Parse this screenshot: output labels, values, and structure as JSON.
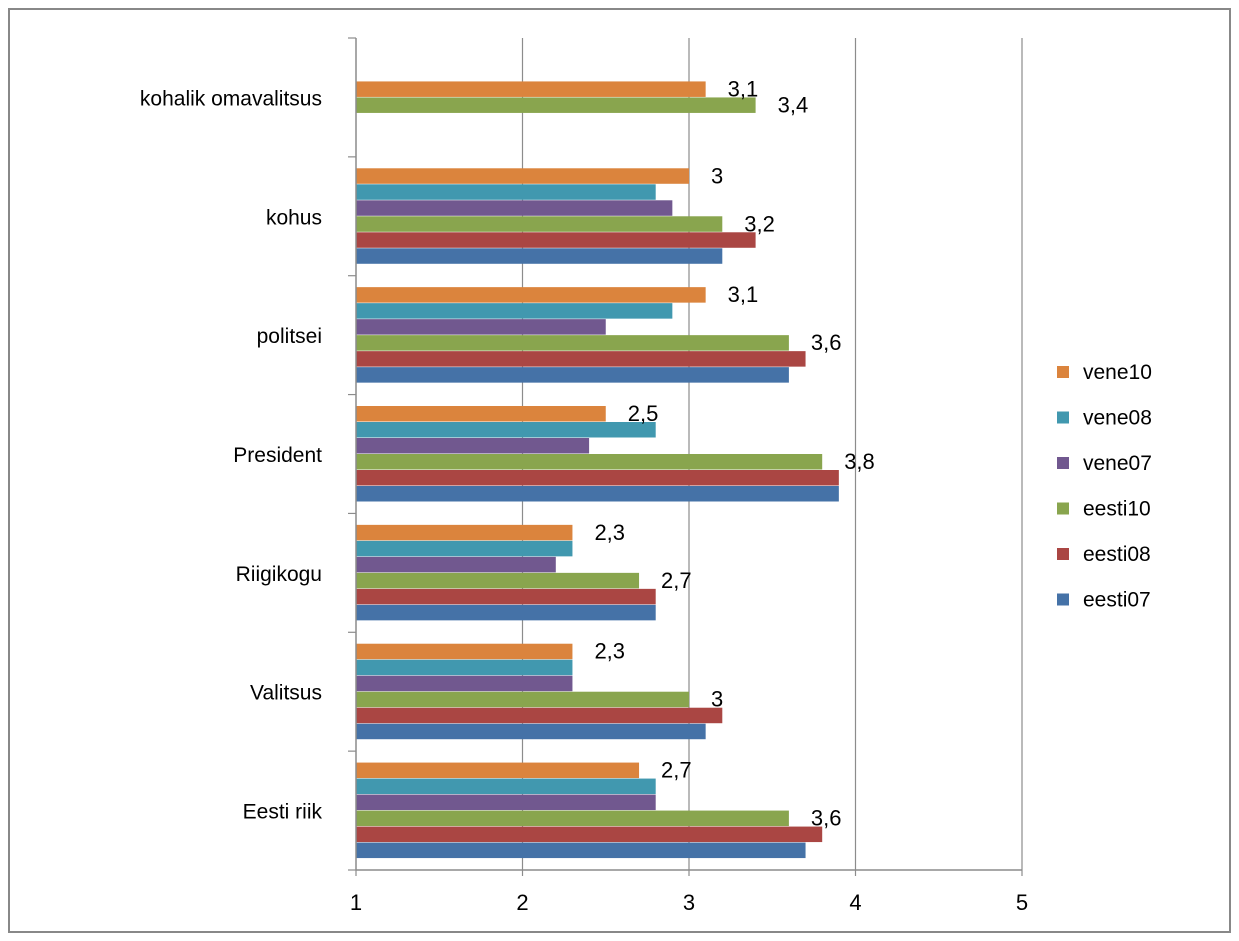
{
  "chart_data": {
    "type": "bar",
    "orientation": "horizontal",
    "categories": [
      "Eesti riik",
      "Valitsus",
      "Riigikogu",
      "President",
      "politsei",
      "kohus",
      "kohalik omavalitsus"
    ],
    "series": [
      {
        "name": "eesti07",
        "color": "#4572A7",
        "values": [
          3.7,
          3.1,
          2.8,
          3.9,
          3.6,
          3.2,
          null
        ]
      },
      {
        "name": "eesti08",
        "color": "#AA4643",
        "values": [
          3.8,
          3.2,
          2.8,
          3.9,
          3.7,
          3.4,
          null
        ]
      },
      {
        "name": "eesti10",
        "color": "#89A54E",
        "values": [
          3.6,
          3.0,
          2.7,
          3.8,
          3.6,
          3.2,
          3.4
        ]
      },
      {
        "name": "vene07",
        "color": "#71588F",
        "values": [
          2.8,
          2.3,
          2.2,
          2.4,
          2.5,
          2.9,
          null
        ]
      },
      {
        "name": "vene08",
        "color": "#4198AF",
        "values": [
          2.8,
          2.3,
          2.3,
          2.8,
          2.9,
          2.8,
          null
        ]
      },
      {
        "name": "vene10",
        "color": "#DB843D",
        "values": [
          2.7,
          2.3,
          2.3,
          2.5,
          3.1,
          3.0,
          3.1
        ]
      }
    ],
    "data_labels": [
      {
        "category": "Eesti riik",
        "series": "vene10",
        "text": "2,7"
      },
      {
        "category": "Eesti riik",
        "series": "eesti10",
        "text": "3,6"
      },
      {
        "category": "Valitsus",
        "series": "vene10",
        "text": "2,3"
      },
      {
        "category": "Valitsus",
        "series": "eesti10",
        "text": "3"
      },
      {
        "category": "Riigikogu",
        "series": "vene10",
        "text": "2,3"
      },
      {
        "category": "Riigikogu",
        "series": "eesti10",
        "text": "2,7"
      },
      {
        "category": "President",
        "series": "vene10",
        "text": "2,5"
      },
      {
        "category": "President",
        "series": "eesti10",
        "text": "3,8"
      },
      {
        "category": "politsei",
        "series": "vene10",
        "text": "3,1"
      },
      {
        "category": "politsei",
        "series": "eesti10",
        "text": "3,6"
      },
      {
        "category": "kohus",
        "series": "vene10",
        "text": "3"
      },
      {
        "category": "kohus",
        "series": "eesti10",
        "text": "3,2"
      },
      {
        "category": "kohalik omavalitsus",
        "series": "vene10",
        "text": "3,1"
      },
      {
        "category": "kohalik omavalitsus",
        "series": "eesti10",
        "text": "3,4"
      }
    ],
    "x_ticks": [
      "1",
      "2",
      "3",
      "4",
      "5"
    ],
    "xlim": [
      1,
      5
    ],
    "grid": true,
    "legend_position": "right",
    "legend_order": [
      "vene10",
      "vene08",
      "vene07",
      "eesti10",
      "eesti08",
      "eesti07"
    ],
    "title": "",
    "xlabel": "",
    "ylabel": ""
  }
}
